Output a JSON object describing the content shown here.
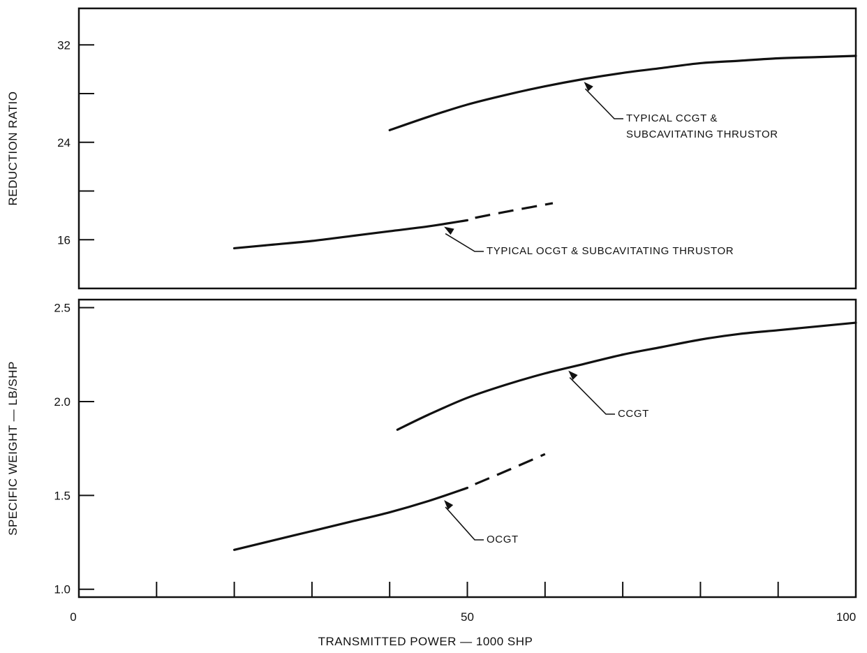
{
  "chart_data": [
    {
      "type": "line",
      "title": "",
      "xlabel": "TRANSMITTED POWER — 1000 SHP",
      "ylabel": "REDUCTION RATIO",
      "xlim": [
        0,
        100
      ],
      "ylim": [
        12,
        35
      ],
      "yticks": [
        16,
        20,
        24,
        28,
        32
      ],
      "ytick_labels": [
        "16",
        "",
        "24",
        "",
        "32"
      ],
      "grid": false,
      "series": [
        {
          "name": "TYPICAL CCGT & SUBCAVITATING THRUSTOR",
          "style": "solid",
          "x": [
            40,
            45,
            50,
            55,
            60,
            65,
            70,
            75,
            80,
            85,
            90,
            95,
            100
          ],
          "y": [
            25.0,
            26.1,
            27.1,
            27.9,
            28.6,
            29.2,
            29.7,
            30.1,
            30.5,
            30.7,
            30.9,
            31.0,
            31.1
          ]
        },
        {
          "name": "TYPICAL OCGT & SUBCAVITATING THRUSTOR",
          "style": "solid",
          "x": [
            20,
            25,
            30,
            35,
            40,
            45,
            50
          ],
          "y": [
            15.3,
            15.6,
            15.9,
            16.3,
            16.7,
            17.1,
            17.6
          ]
        },
        {
          "name": "TYPICAL OCGT & SUBCAVITATING THRUSTOR",
          "style": "dashed",
          "x": [
            51,
            55,
            61
          ],
          "y": [
            17.8,
            18.3,
            19.0
          ]
        }
      ],
      "annotations": [
        {
          "text_lines": [
            "TYPICAL CCGT &",
            "SUBCAVITATING THRUSTOR"
          ],
          "points_to": [
            65,
            29.2
          ]
        },
        {
          "text_lines": [
            "TYPICAL OCGT & SUBCAVITATING THRUSTOR"
          ],
          "points_to": [
            47,
            17.3
          ]
        }
      ]
    },
    {
      "type": "line",
      "title": "",
      "xlabel": "TRANSMITTED POWER — 1000 SHP",
      "ylabel": "SPECIFIC WEIGHT — LB/SHP",
      "xlim": [
        0,
        100
      ],
      "ylim": [
        1.0,
        2.5
      ],
      "yticks": [
        1.0,
        1.5,
        2.0,
        2.5
      ],
      "ytick_labels": [
        "1.0",
        "1.5",
        "2.0",
        "2.5"
      ],
      "xticks": [
        0,
        10,
        20,
        30,
        40,
        50,
        60,
        70,
        80,
        90,
        100
      ],
      "xtick_labels": [
        "0",
        "",
        "",
        "",
        "",
        "50",
        "",
        "",
        "",
        "",
        "100"
      ],
      "grid": false,
      "series": [
        {
          "name": "CCGT",
          "style": "solid",
          "x": [
            41,
            45,
            50,
            55,
            60,
            65,
            70,
            75,
            80,
            85,
            90,
            95,
            100
          ],
          "y": [
            1.85,
            1.93,
            2.02,
            2.09,
            2.15,
            2.2,
            2.25,
            2.29,
            2.33,
            2.36,
            2.38,
            2.4,
            2.42
          ]
        },
        {
          "name": "OCGT",
          "style": "solid",
          "x": [
            20,
            25,
            30,
            35,
            40,
            45,
            50
          ],
          "y": [
            1.21,
            1.26,
            1.31,
            1.36,
            1.41,
            1.47,
            1.54
          ]
        },
        {
          "name": "OCGT",
          "style": "dashed",
          "x": [
            51,
            55,
            60
          ],
          "y": [
            1.56,
            1.63,
            1.72
          ]
        }
      ],
      "annotations": [
        {
          "text_lines": [
            "CCGT"
          ],
          "points_to": [
            63,
            2.18
          ]
        },
        {
          "text_lines": [
            "OCGT"
          ],
          "points_to": [
            47,
            1.49
          ]
        }
      ]
    }
  ]
}
